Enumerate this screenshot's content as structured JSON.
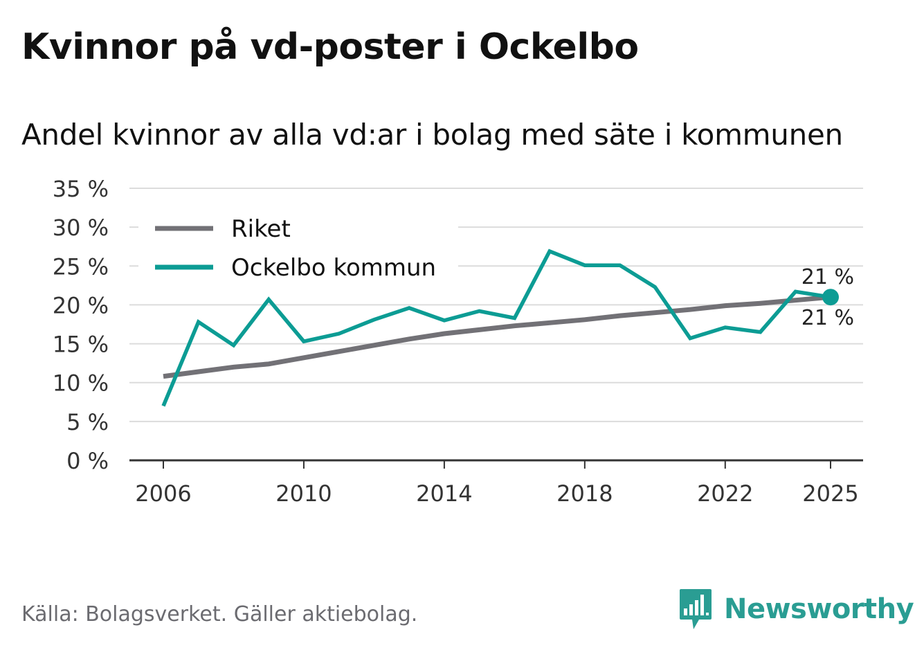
{
  "header": {
    "title": "Kvinnor på vd-poster i Ockelbo",
    "subtitle": "Andel kvinnor av alla vd:ar i bolag med säte i kommunen"
  },
  "footer": {
    "source": "Källa: Bolagsverket. Gäller aktiebolag.",
    "brand": "Newsworthy"
  },
  "colors": {
    "riket": "#727176",
    "ockelbo": "#0c9c94",
    "grid": "#dcdcdc",
    "axis": "#333333",
    "brand": "#2a9d93"
  },
  "chart_data": {
    "type": "line",
    "title": "Kvinnor på vd-poster i Ockelbo",
    "subtitle": "Andel kvinnor av alla vd:ar i bolag med säte i kommunen",
    "xlabel": "",
    "ylabel": "",
    "x": [
      2006,
      2007,
      2008,
      2009,
      2010,
      2011,
      2012,
      2013,
      2014,
      2015,
      2016,
      2017,
      2018,
      2019,
      2020,
      2021,
      2022,
      2023,
      2024,
      2025
    ],
    "xlim": [
      2006,
      2025
    ],
    "ylim": [
      0,
      35
    ],
    "x_ticks": [
      2006,
      2010,
      2014,
      2018,
      2022,
      2025
    ],
    "x_tick_labels": [
      "2006",
      "2010",
      "2014",
      "2018",
      "2022",
      "2025"
    ],
    "y_ticks": [
      0,
      5,
      10,
      15,
      20,
      25,
      30,
      35
    ],
    "y_tick_labels": [
      "0 %",
      "5 %",
      "10 %",
      "15 %",
      "20 %",
      "25 %",
      "30 %",
      "35 %"
    ],
    "grid": true,
    "legend_position": "top-left",
    "series": [
      {
        "name": "Riket",
        "color": "#727176",
        "values": [
          10.8,
          11.4,
          12.0,
          12.4,
          13.2,
          14.0,
          14.8,
          15.6,
          16.3,
          16.8,
          17.3,
          17.7,
          18.1,
          18.6,
          19.0,
          19.4,
          19.9,
          20.2,
          20.6,
          21.0
        ],
        "end_label": "21 %"
      },
      {
        "name": "Ockelbo kommun",
        "color": "#0c9c94",
        "values": [
          7.0,
          17.8,
          14.8,
          20.7,
          15.3,
          16.3,
          18.1,
          19.6,
          18.0,
          19.2,
          18.3,
          26.9,
          25.1,
          25.1,
          22.3,
          15.7,
          17.1,
          16.5,
          21.7,
          21.0
        ],
        "end_label": "21 %"
      }
    ]
  }
}
